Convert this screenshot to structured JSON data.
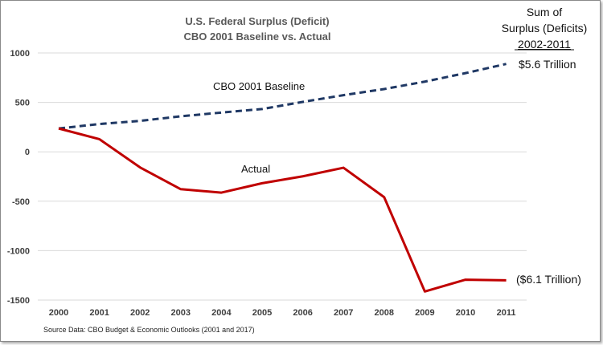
{
  "chart_data": {
    "type": "line",
    "title": "U.S. Federal Surplus (Deficit)",
    "subtitle": "CBO 2001 Baseline vs. Actual",
    "x": [
      "2000",
      "2001",
      "2002",
      "2003",
      "2004",
      "2005",
      "2006",
      "2007",
      "2008",
      "2009",
      "2010",
      "2011"
    ],
    "ylim": [
      -1500,
      1000
    ],
    "yticks": [
      1000,
      500,
      0,
      -500,
      -1000,
      -1500
    ],
    "grid": "horizontal",
    "series": [
      {
        "name": "CBO 2001 Baseline",
        "style": "dashed",
        "color": "#1f3864",
        "values": [
          236,
          281,
          313,
          359,
          397,
          433,
          505,
          573,
          635,
          710,
          796,
          889
        ]
      },
      {
        "name": "Actual",
        "style": "solid",
        "color": "#c00000",
        "values": [
          236,
          128,
          -158,
          -378,
          -413,
          -318,
          -248,
          -161,
          -459,
          -1413,
          -1294,
          -1300
        ]
      }
    ],
    "annotations": {
      "sum_header": [
        "Sum of",
        "Surplus (Deficits)",
        "2002-2011"
      ],
      "baseline_sum": "$5.6 Trillion",
      "actual_sum": "($6.1 Trillion)"
    },
    "source": "Source Data:  CBO Budget & Economic Outlooks (2001 and 2017)"
  }
}
